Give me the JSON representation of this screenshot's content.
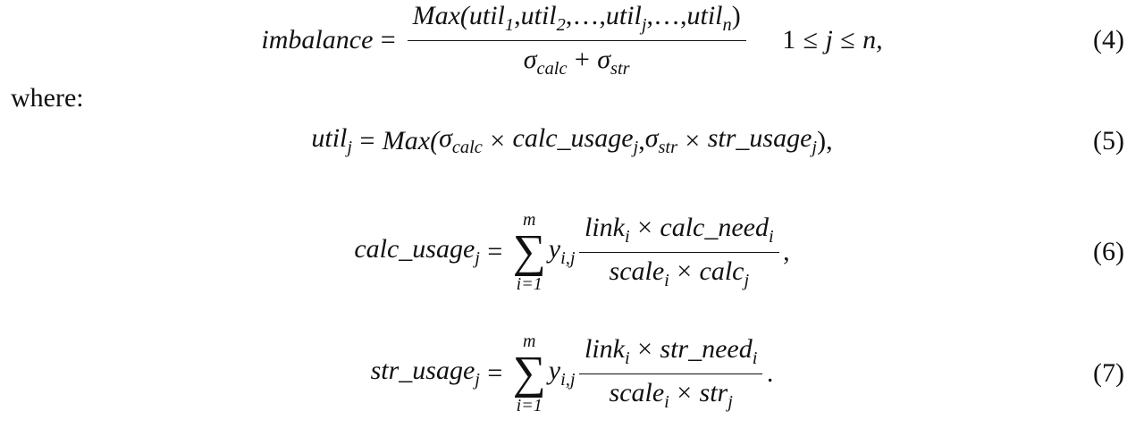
{
  "equations": [
    {
      "number": "(4)",
      "math": [
        "imbalance",
        "=",
        {
          "num": [
            "Max(",
            {
              "b": "util",
              "s": "1"
            },
            ",",
            {
              "b": "util",
              "s": "2"
            },
            ",…,",
            {
              "b": "util",
              "s": "j"
            },
            ",…,",
            {
              "b": "util",
              "s": "n"
            },
            ")"
          ],
          "den": [
            {
              "b": "σ",
              "s": "calc"
            },
            "+",
            {
              "b": "σ",
              "s": "str"
            }
          ]
        },
        "1",
        "≤",
        "j",
        "≤",
        "n,"
      ]
    },
    {
      "where": "where:"
    },
    {
      "number": "(5)",
      "math": [
        {
          "b": "util",
          "s": "j"
        },
        "=",
        "Max(",
        {
          "b": "σ",
          "s": "calc"
        },
        "×",
        {
          "b": "calc_usage",
          "s": "j"
        },
        ",",
        {
          "b": "σ",
          "s": "str"
        },
        "×",
        {
          "b": "str_usage",
          "s": "j"
        },
        "),"
      ]
    },
    {
      "number": "(6)",
      "math": [
        {
          "b": "calc_usage",
          "s": "j"
        },
        "=",
        {
          "sum": "∑",
          "upper": "m",
          "lower": "i=1"
        },
        {
          "b": "y",
          "s": "i,j"
        },
        {
          "num": [
            {
              "b": "link",
              "s": "i"
            },
            "×",
            {
              "b": "calc_need",
              "s": "i"
            }
          ],
          "den": [
            {
              "b": "scale",
              "s": "i"
            },
            "×",
            {
              "b": "calc",
              "s": "j"
            }
          ]
        },
        ","
      ]
    },
    {
      "number": "(7)",
      "math": [
        {
          "b": "str_usage",
          "s": "j"
        },
        "=",
        {
          "sum": "∑",
          "upper": "m",
          "lower": "i=1"
        },
        {
          "b": "y",
          "s": "i,j"
        },
        {
          "num": [
            {
              "b": "link",
              "s": "i"
            },
            "×",
            {
              "b": "str_need",
              "s": "i"
            }
          ],
          "den": [
            {
              "b": "scale",
              "s": "i"
            },
            "×",
            {
              "b": "str",
              "s": "j"
            }
          ]
        },
        "."
      ]
    }
  ]
}
